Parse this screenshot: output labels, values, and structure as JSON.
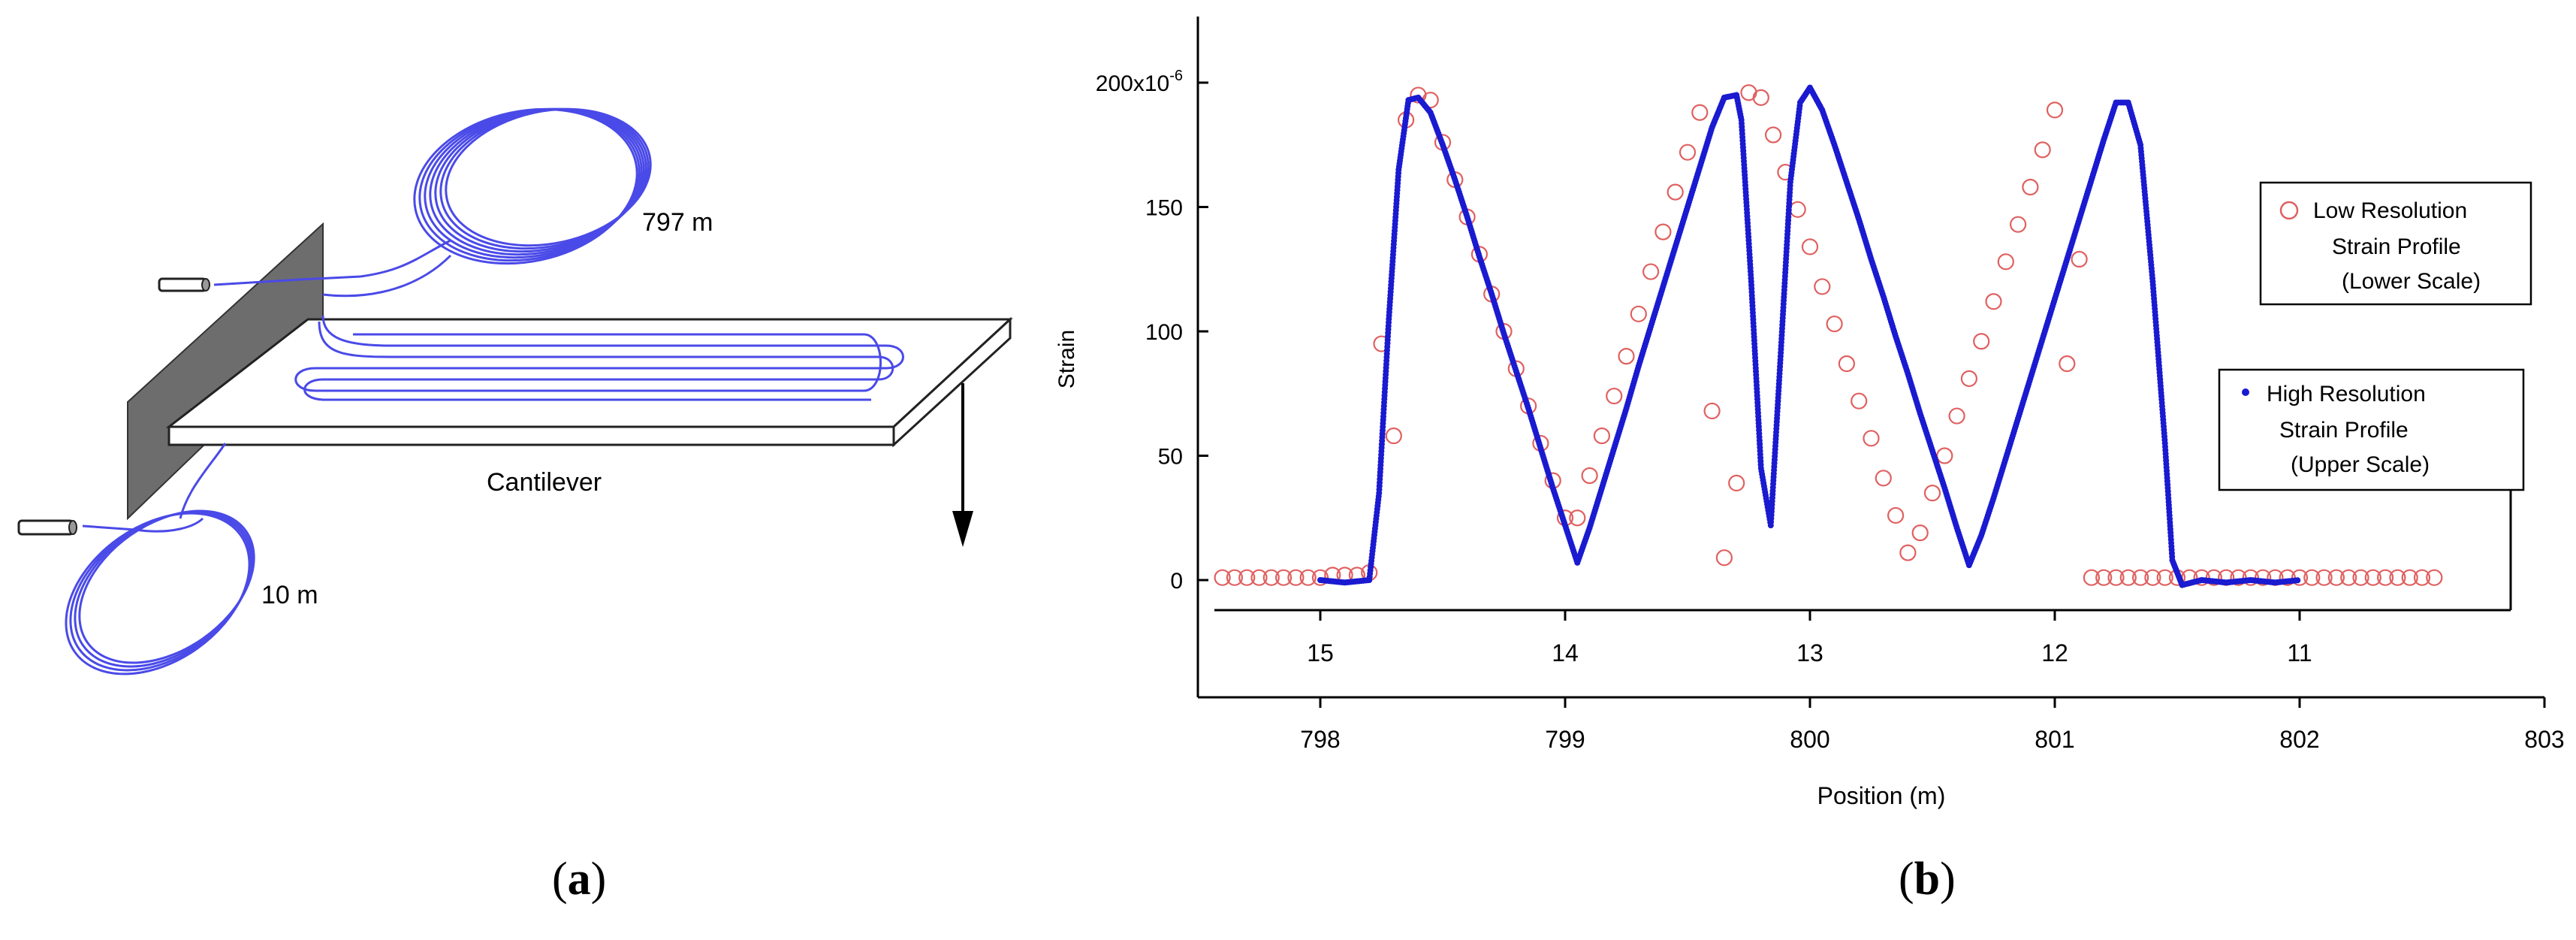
{
  "panel_a": {
    "label_797": "797 m",
    "label_10": "10 m",
    "label_cantilever": "Cantilever",
    "caption": "(a)",
    "caption_letter": "a",
    "fiber_color": "#4a4ae8"
  },
  "panel_b": {
    "caption": "(b)",
    "caption_letter": "b"
  },
  "chart_data": {
    "type": "scatter",
    "ylabel": "Strain",
    "xlabel": "Position (m)",
    "ylim": [
      -1.5e-05,
      0.000205
    ],
    "y_ticks": [
      0,
      50,
      100,
      150,
      200
    ],
    "y_tick_labels": [
      "0",
      "50",
      "100",
      "150",
      "200x10"
    ],
    "y_tick_exponent": "-6",
    "lower_axis": {
      "xlim": [
        797.5,
        803
      ],
      "ticks": [
        798,
        799,
        800,
        801,
        802,
        803
      ],
      "tick_labels": [
        "798",
        "799",
        "800",
        "801",
        "802",
        "803"
      ]
    },
    "upper_axis": {
      "reversed": true,
      "ticks": [
        15,
        14,
        13,
        12,
        11
      ],
      "tick_labels": [
        "15",
        "14",
        "13",
        "12",
        "11"
      ],
      "tick_positions_on_lower": [
        798.0,
        799.0,
        800.0,
        801.0,
        802.0
      ]
    },
    "series": [
      {
        "name": "Low Resolution Strain Profile (Lower Scale)",
        "legend_lines": [
          "Low Resolution",
          "Strain Profile",
          "(Lower Scale)"
        ],
        "marker": "open-circle",
        "color": "#e06060",
        "x": [
          797.6,
          797.65,
          797.7,
          797.75,
          797.8,
          797.85,
          797.9,
          797.95,
          798.0,
          798.05,
          798.1,
          798.15,
          798.2,
          798.25,
          798.3,
          798.35,
          798.4,
          798.45,
          798.5,
          798.55,
          798.6,
          798.65,
          798.7,
          798.75,
          798.8,
          798.85,
          798.9,
          798.95,
          799.0,
          799.05,
          799.1,
          799.15,
          799.2,
          799.25,
          799.3,
          799.35,
          799.4,
          799.45,
          799.5,
          799.55,
          799.6,
          799.65,
          799.7,
          799.75,
          799.8,
          799.85,
          799.9,
          799.95,
          800.0,
          800.05,
          800.1,
          800.15,
          800.2,
          800.25,
          800.3,
          800.35,
          800.4,
          800.45,
          800.5,
          800.55,
          800.6,
          800.65,
          800.7,
          800.75,
          800.8,
          800.85,
          800.9,
          800.95,
          801.0,
          801.05,
          801.1,
          801.15,
          801.2,
          801.25,
          801.3,
          801.35,
          801.4,
          801.45,
          801.5,
          801.55,
          801.6,
          801.65,
          801.7,
          801.75,
          801.8,
          801.85,
          801.9,
          801.95,
          802.0,
          802.05,
          802.1,
          802.15,
          802.2,
          802.25,
          802.3,
          802.35,
          802.4,
          802.45,
          802.5,
          802.55
        ],
        "y": [
          1e-06,
          1e-06,
          1e-06,
          1e-06,
          1e-06,
          1e-06,
          1e-06,
          1e-06,
          1e-06,
          2e-06,
          2e-06,
          2e-06,
          3e-06,
          9.5e-05,
          5.8e-05,
          0.000185,
          0.000195,
          0.000193,
          0.000176,
          0.000161,
          0.000146,
          0.000131,
          0.000115,
          0.0001,
          8.5e-05,
          7e-05,
          5.5e-05,
          4e-05,
          2.5e-05,
          2.5e-05,
          4.2e-05,
          5.8e-05,
          7.4e-05,
          9e-05,
          0.000107,
          0.000124,
          0.00014,
          0.000156,
          0.000172,
          0.000188,
          6.8e-05,
          9e-06,
          3.9e-05,
          0.000196,
          0.000194,
          0.000179,
          0.000164,
          0.000149,
          0.000134,
          0.000118,
          0.000103,
          8.7e-05,
          7.2e-05,
          5.7e-05,
          4.1e-05,
          2.6e-05,
          1.1e-05,
          1.9e-05,
          3.5e-05,
          5e-05,
          6.6e-05,
          8.1e-05,
          9.6e-05,
          0.000112,
          0.000128,
          0.000143,
          0.000158,
          0.000173,
          0.000189,
          8.7e-05,
          0.000129,
          1e-06,
          1e-06,
          1e-06,
          1e-06,
          1e-06,
          1e-06,
          1e-06,
          1e-06,
          1e-06,
          1e-06,
          1e-06,
          1e-06,
          1e-06,
          1e-06,
          1e-06,
          1e-06,
          1e-06,
          1e-06,
          1e-06,
          1e-06,
          1e-06,
          1e-06,
          1e-06,
          1e-06,
          1e-06,
          1e-06,
          1e-06,
          1e-06,
          1e-06
        ],
        "note_x_span": "x values follow the lower axis"
      },
      {
        "name": "High Resolution Strain Profile (Upper Scale)",
        "legend_lines": [
          "High Resolution",
          "Strain Profile",
          "(Upper Scale)"
        ],
        "marker": "dot",
        "color": "#1a1ad0",
        "x": [
          798.0,
          798.1,
          798.2,
          798.24,
          798.28,
          798.32,
          798.36,
          798.4,
          798.45,
          798.5,
          798.55,
          798.6,
          798.65,
          798.7,
          798.75,
          798.8,
          798.85,
          798.9,
          798.95,
          799.0,
          799.05,
          799.1,
          799.15,
          799.2,
          799.25,
          799.3,
          799.35,
          799.4,
          799.45,
          799.5,
          799.55,
          799.6,
          799.65,
          799.7,
          799.72,
          799.76,
          799.8,
          799.84,
          799.88,
          799.92,
          799.96,
          800.0,
          800.05,
          800.1,
          800.15,
          800.2,
          800.25,
          800.3,
          800.35,
          800.4,
          800.45,
          800.5,
          800.55,
          800.6,
          800.65,
          800.7,
          800.75,
          800.8,
          800.85,
          800.9,
          800.95,
          801.0,
          801.05,
          801.1,
          801.15,
          801.2,
          801.25,
          801.3,
          801.35,
          801.4,
          801.45,
          801.48,
          801.52,
          801.56,
          801.6,
          801.7,
          801.8,
          801.9,
          802.0
        ],
        "y": [
          0.0,
          -1e-06,
          0.0,
          3.5e-05,
          0.000105,
          0.000165,
          0.000193,
          0.000194,
          0.000188,
          0.000175,
          0.000161,
          0.000146,
          0.00013,
          0.000115,
          9.9e-05,
          8.4e-05,
          6.9e-05,
          5.3e-05,
          3.7e-05,
          2.2e-05,
          7e-06,
          2.1e-05,
          3.7e-05,
          5.3e-05,
          6.9e-05,
          8.6e-05,
          0.000102,
          0.000118,
          0.000134,
          0.00015,
          0.000166,
          0.000182,
          0.000194,
          0.000195,
          0.000185,
          0.00012,
          4.5e-05,
          2.2e-05,
          9e-05,
          0.00016,
          0.000192,
          0.000198,
          0.000189,
          0.000175,
          0.00016,
          0.000145,
          0.000129,
          0.000114,
          9.8e-05,
          8.3e-05,
          6.7e-05,
          5.2e-05,
          3.7e-05,
          2.1e-05,
          6e-06,
          1.8e-05,
          3.3e-05,
          4.9e-05,
          6.5e-05,
          8.1e-05,
          9.7e-05,
          0.000113,
          0.000129,
          0.000145,
          0.000161,
          0.000177,
          0.000192,
          0.000192,
          0.000175,
          0.00012,
          5.5e-05,
          8e-06,
          -2e-06,
          -1e-06,
          0.0,
          -1e-06,
          0.0,
          -1e-06,
          0.0
        ]
      }
    ],
    "grid": false,
    "legend_position": "right"
  }
}
